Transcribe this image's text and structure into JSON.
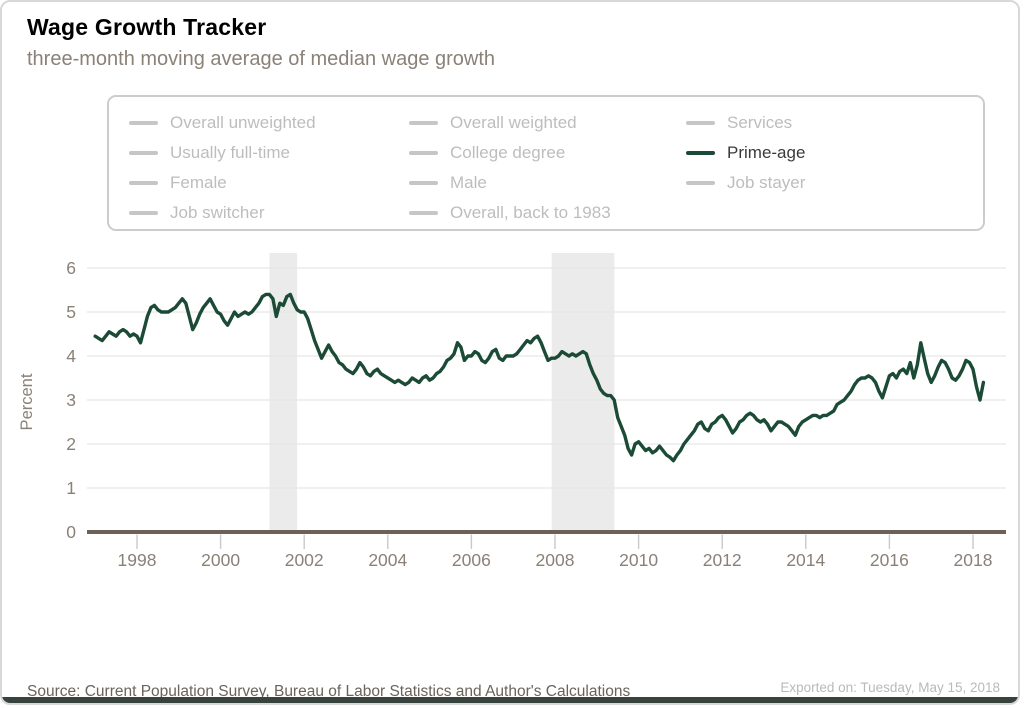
{
  "header": {
    "title": "Wage Growth Tracker",
    "subtitle": "three-month moving average of median wage growth"
  },
  "legend": {
    "items": [
      {
        "label": "Overall unweighted",
        "active": false
      },
      {
        "label": "Overall weighted",
        "active": false
      },
      {
        "label": "Services",
        "active": false
      },
      {
        "label": "Usually full-time",
        "active": false
      },
      {
        "label": "College degree",
        "active": false
      },
      {
        "label": "Prime-age",
        "active": true
      },
      {
        "label": "Female",
        "active": false
      },
      {
        "label": "Male",
        "active": false
      },
      {
        "label": "Job stayer",
        "active": false
      },
      {
        "label": "Job switcher",
        "active": false
      },
      {
        "label": "Overall, back to 1983",
        "active": false
      }
    ]
  },
  "footer": {
    "source": "Source: Current Population Survey, Bureau of Labor Statistics and Author's Calculations",
    "exported": "Exported on: Tuesday, May 15, 2018"
  },
  "colors": {
    "line": "#1b4b36",
    "recession_band": "#ebebeb",
    "axis_line": "#6b6156",
    "gridline": "#e7e7e7",
    "tick_mark": "#c9c9c9",
    "tick_text": "#8a8177",
    "legend_inactive": "#c6c6c6",
    "bottom_bar": "#39433d"
  },
  "chart_data": {
    "type": "line",
    "title": "Wage Growth Tracker",
    "subtitle": "three-month moving average of median wage growth",
    "ylabel": "Percent",
    "xlabel": "",
    "ylim": [
      0,
      6
    ],
    "yticks": [
      0,
      1,
      2,
      3,
      4,
      5,
      6
    ],
    "xticks": [
      1998,
      2000,
      2002,
      2004,
      2006,
      2008,
      2010,
      2012,
      2014,
      2016,
      2018
    ],
    "grid": "horizontal",
    "legend_position": "top",
    "frequency": "monthly",
    "start": "1997-01",
    "end": "2018-04",
    "recession_bands": [
      [
        2001.17,
        2001.83
      ],
      [
        2007.92,
        2009.42
      ]
    ],
    "series": [
      {
        "name": "Prime-age",
        "color": "#1b4b36",
        "values": [
          4.45,
          4.4,
          4.35,
          4.45,
          4.55,
          4.5,
          4.45,
          4.55,
          4.6,
          4.55,
          4.45,
          4.5,
          4.45,
          4.3,
          4.6,
          4.9,
          5.1,
          5.15,
          5.05,
          5.0,
          5.0,
          5.0,
          5.05,
          5.1,
          5.2,
          5.3,
          5.2,
          4.9,
          4.6,
          4.75,
          4.95,
          5.1,
          5.2,
          5.3,
          5.15,
          5.0,
          4.95,
          4.8,
          4.7,
          4.85,
          5.0,
          4.9,
          4.95,
          5.0,
          4.95,
          5.0,
          5.1,
          5.2,
          5.35,
          5.4,
          5.4,
          5.3,
          4.9,
          5.2,
          5.15,
          5.35,
          5.4,
          5.2,
          5.05,
          5.0,
          5.0,
          4.85,
          4.6,
          4.35,
          4.15,
          3.95,
          4.1,
          4.25,
          4.1,
          4.0,
          3.85,
          3.8,
          3.7,
          3.65,
          3.6,
          3.7,
          3.85,
          3.75,
          3.6,
          3.55,
          3.65,
          3.7,
          3.6,
          3.55,
          3.5,
          3.45,
          3.4,
          3.45,
          3.4,
          3.35,
          3.4,
          3.5,
          3.45,
          3.4,
          3.5,
          3.55,
          3.45,
          3.5,
          3.6,
          3.65,
          3.75,
          3.9,
          3.95,
          4.05,
          4.3,
          4.2,
          3.9,
          4.0,
          4.0,
          4.1,
          4.05,
          3.9,
          3.85,
          3.95,
          4.1,
          4.15,
          3.95,
          3.9,
          4.0,
          4.0,
          4.0,
          4.05,
          4.15,
          4.25,
          4.35,
          4.3,
          4.4,
          4.45,
          4.3,
          4.1,
          3.9,
          3.95,
          3.95,
          4.0,
          4.1,
          4.05,
          4.0,
          4.05,
          4.0,
          4.05,
          4.1,
          4.05,
          3.8,
          3.6,
          3.45,
          3.25,
          3.15,
          3.1,
          3.1,
          3.0,
          2.6,
          2.4,
          2.2,
          1.9,
          1.75,
          2.0,
          2.05,
          1.95,
          1.85,
          1.9,
          1.8,
          1.85,
          1.95,
          1.85,
          1.75,
          1.7,
          1.62,
          1.75,
          1.85,
          2.0,
          2.1,
          2.2,
          2.3,
          2.45,
          2.5,
          2.35,
          2.3,
          2.45,
          2.5,
          2.6,
          2.65,
          2.55,
          2.4,
          2.25,
          2.35,
          2.5,
          2.55,
          2.65,
          2.7,
          2.65,
          2.55,
          2.5,
          2.55,
          2.45,
          2.3,
          2.4,
          2.5,
          2.5,
          2.45,
          2.4,
          2.3,
          2.2,
          2.4,
          2.5,
          2.55,
          2.6,
          2.65,
          2.65,
          2.6,
          2.65,
          2.65,
          2.7,
          2.75,
          2.9,
          2.95,
          3.0,
          3.1,
          3.2,
          3.35,
          3.45,
          3.5,
          3.5,
          3.55,
          3.5,
          3.4,
          3.2,
          3.05,
          3.3,
          3.55,
          3.6,
          3.5,
          3.65,
          3.7,
          3.6,
          3.85,
          3.5,
          3.8,
          4.3,
          3.95,
          3.6,
          3.4,
          3.55,
          3.75,
          3.9,
          3.85,
          3.7,
          3.5,
          3.45,
          3.55,
          3.7,
          3.9,
          3.85,
          3.7,
          3.3,
          3.0,
          3.4
        ]
      }
    ]
  }
}
